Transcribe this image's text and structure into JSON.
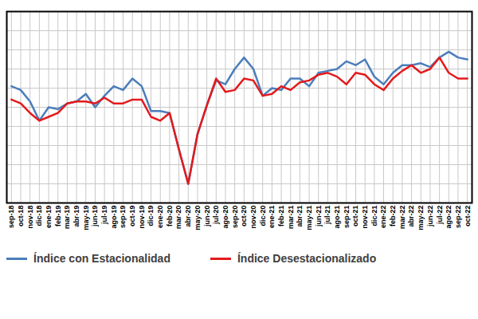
{
  "chart_data": {
    "type": "line",
    "categories": [
      "sep-18",
      "oct-18",
      "nov-18",
      "dic-18",
      "ene-19",
      "feb-19",
      "mar-19",
      "abr-19",
      "may-19",
      "jun-19",
      "jul-19",
      "ago-19",
      "sep-19",
      "oct-19",
      "nov-19",
      "dic-19",
      "ene-20",
      "feb-20",
      "mar-20",
      "abr-20",
      "may-20",
      "jun-20",
      "jul-20",
      "ago-20",
      "sep-20",
      "oct-20",
      "nov-20",
      "dic-20",
      "ene-21",
      "feb-21",
      "mar-21",
      "abr-21",
      "may-21",
      "jun-21",
      "jul-21",
      "ago-21",
      "sep-21",
      "oct-21",
      "nov-21",
      "dic-21",
      "ene-22",
      "feb-22",
      "mar-22",
      "abr-22",
      "may-22",
      "jun-22",
      "jul-22",
      "ago-22",
      "sep-22",
      "oct-22"
    ],
    "series": [
      {
        "name": "Índice con Estacionalidad",
        "color": "#4a7ebb",
        "values": [
          6.1,
          5.9,
          5.3,
          4.3,
          5.0,
          4.9,
          5.2,
          5.3,
          5.7,
          5.0,
          5.6,
          6.1,
          5.9,
          6.5,
          6.1,
          4.8,
          4.8,
          4.7,
          2.8,
          1.0,
          3.6,
          5.1,
          6.4,
          6.2,
          7.0,
          7.6,
          7.0,
          5.6,
          6.0,
          5.9,
          6.5,
          6.5,
          6.1,
          6.8,
          6.9,
          7.0,
          7.4,
          7.2,
          7.5,
          6.6,
          6.2,
          6.8,
          7.2,
          7.2,
          7.3,
          7.1,
          7.6,
          7.9,
          7.6,
          7.5
        ]
      },
      {
        "name": "Índice Desestacionalizado",
        "color": "#e31a1c",
        "values": [
          5.4,
          5.2,
          4.7,
          4.3,
          4.5,
          4.7,
          5.2,
          5.3,
          5.3,
          5.2,
          5.5,
          5.2,
          5.2,
          5.4,
          5.4,
          4.5,
          4.3,
          4.7,
          2.8,
          1.0,
          3.6,
          5.1,
          6.5,
          5.8,
          5.9,
          6.5,
          6.4,
          5.6,
          5.7,
          6.1,
          5.9,
          6.3,
          6.4,
          6.7,
          6.8,
          6.6,
          6.2,
          6.8,
          6.7,
          6.2,
          5.9,
          6.5,
          6.9,
          7.2,
          6.8,
          7.0,
          7.6,
          6.8,
          6.5,
          6.5
        ]
      }
    ],
    "ylim": [
      0,
      10
    ],
    "yticks": [
      0,
      1,
      2,
      3,
      4,
      5,
      6,
      7,
      8,
      9,
      10
    ],
    "grid": true,
    "legend": "bottom",
    "tick_labels": "x"
  }
}
